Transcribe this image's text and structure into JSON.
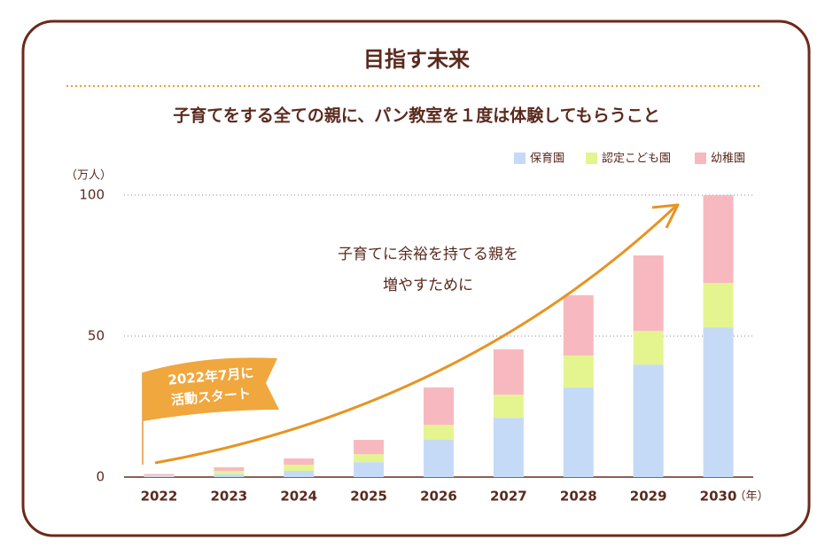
{
  "chart_data": {
    "type": "stacked_bar",
    "title": "目指す未来",
    "subtitle": "子育てをする全ての親に、パン教室を１度は体験してもらうこと",
    "y_unit": "（万人）",
    "x_unit": "（年）",
    "annotation": [
      "子育てに余裕を持てる親を",
      "増やすために"
    ],
    "flag": [
      "2022年7月に",
      "活動スタート"
    ],
    "categories": [
      "2022",
      "2023",
      "2024",
      "2025",
      "2026",
      "2027",
      "2028",
      "2029",
      "2030"
    ],
    "series": [
      {
        "name": "保育園",
        "color": "#c5daf7",
        "values": [
          0.3,
          1,
          2.2,
          5.3,
          13.2,
          21,
          31.8,
          39.9,
          53.1
        ]
      },
      {
        "name": "認定こども園",
        "color": "#e4f58f",
        "values": [
          0.2,
          1.2,
          2.2,
          2.8,
          5.3,
          8.2,
          11.3,
          11.9,
          15.7
        ]
      },
      {
        "name": "幼稚園",
        "color": "#f7b9bf",
        "values": [
          0.6,
          1.3,
          2.2,
          5.1,
          13.3,
          16.1,
          21.4,
          26.8,
          31.2
        ]
      }
    ],
    "ylim": [
      0,
      100
    ],
    "yticks": [
      0,
      50,
      100
    ],
    "grid": true
  }
}
